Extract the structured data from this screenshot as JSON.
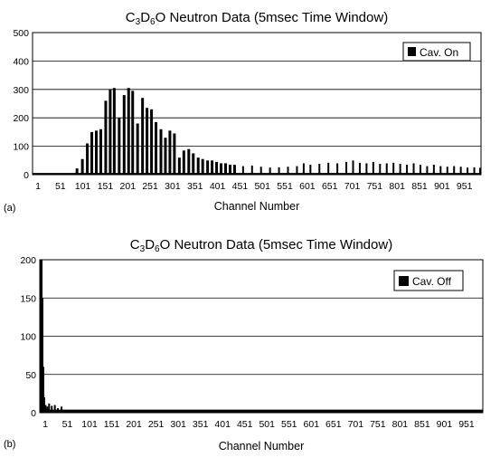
{
  "chart_data": [
    {
      "type": "bar",
      "panel_label": "(a)",
      "title": {
        "before": "C",
        "sub1": "3",
        "mid1": "D",
        "sub2": "6",
        "mid2": "O",
        "after": " Neutron Data (5msec Time Window)"
      },
      "xlabel": "Channel Number",
      "ylabel": "",
      "xlim": [
        1,
        1000
      ],
      "ylim": [
        0,
        500
      ],
      "y_ticks": [
        0,
        100,
        200,
        300,
        400,
        500
      ],
      "x_tick_labels": [
        "1",
        "51",
        "101",
        "151",
        "201",
        "251",
        "301",
        "351",
        "401",
        "451",
        "501",
        "551",
        "601",
        "651",
        "701",
        "751",
        "801",
        "851",
        "901",
        "951"
      ],
      "grid": true,
      "legend_position": "top-right",
      "series": [
        {
          "name": "Cav. On",
          "color": "#000000",
          "peaks": [
            [
              100,
              22
            ],
            [
              112,
              55
            ],
            [
              123,
              110
            ],
            [
              133,
              150
            ],
            [
              143,
              155
            ],
            [
              153,
              160
            ],
            [
              164,
              260
            ],
            [
              174,
              300
            ],
            [
              183,
              305
            ],
            [
              194,
              200
            ],
            [
              205,
              280
            ],
            [
              215,
              305
            ],
            [
              224,
              295
            ],
            [
              235,
              180
            ],
            [
              246,
              270
            ],
            [
              256,
              235
            ],
            [
              266,
              230
            ],
            [
              276,
              185
            ],
            [
              287,
              160
            ],
            [
              297,
              130
            ],
            [
              307,
              155
            ],
            [
              317,
              145
            ],
            [
              328,
              60
            ],
            [
              338,
              85
            ],
            [
              349,
              90
            ],
            [
              359,
              75
            ],
            [
              370,
              60
            ],
            [
              380,
              55
            ],
            [
              391,
              50
            ],
            [
              401,
              50
            ],
            [
              411,
              45
            ],
            [
              421,
              40
            ],
            [
              431,
              40
            ],
            [
              441,
              35
            ],
            [
              451,
              35
            ]
          ],
          "tail": [
            [
              470,
              30
            ],
            [
              490,
              32
            ],
            [
              510,
              28
            ],
            [
              530,
              25
            ],
            [
              550,
              26
            ],
            [
              570,
              28
            ],
            [
              590,
              30
            ],
            [
              605,
              40
            ],
            [
              620,
              35
            ],
            [
              640,
              38
            ],
            [
              660,
              42
            ],
            [
              680,
              40
            ],
            [
              700,
              45
            ],
            [
              715,
              50
            ],
            [
              730,
              42
            ],
            [
              745,
              40
            ],
            [
              760,
              45
            ],
            [
              775,
              38
            ],
            [
              790,
              40
            ],
            [
              805,
              42
            ],
            [
              820,
              38
            ],
            [
              835,
              35
            ],
            [
              850,
              40
            ],
            [
              865,
              35
            ],
            [
              880,
              30
            ],
            [
              895,
              35
            ],
            [
              910,
              30
            ],
            [
              925,
              28
            ],
            [
              940,
              30
            ],
            [
              955,
              28
            ],
            [
              970,
              25
            ],
            [
              985,
              26
            ],
            [
              998,
              24
            ]
          ],
          "baseline": 6
        }
      ]
    },
    {
      "type": "bar",
      "panel_label": "(b)",
      "title": {
        "before": "C",
        "sub1": "3",
        "mid1": "D",
        "sub2": "6",
        "mid2": "O",
        "after": " Neutron Data (5msec Time Window)"
      },
      "xlabel": "Channel Number",
      "ylabel": "",
      "xlim": [
        1,
        1000
      ],
      "ylim": [
        0,
        200
      ],
      "y_ticks": [
        0,
        50,
        100,
        150,
        200
      ],
      "x_tick_labels": [
        "1",
        "51",
        "101",
        "151",
        "201",
        "251",
        "301",
        "351",
        "401",
        "451",
        "501",
        "551",
        "601",
        "651",
        "701",
        "751",
        "801",
        "851",
        "901",
        "951"
      ],
      "grid": true,
      "legend_position": "top-right",
      "series": [
        {
          "name": "Cav. Off",
          "color": "#000000",
          "peaks": [
            [
              3,
              200
            ],
            [
              5,
              200
            ],
            [
              7,
              150
            ],
            [
              9,
              60
            ],
            [
              11,
              20
            ],
            [
              14,
              10
            ],
            [
              18,
              8
            ],
            [
              22,
              12
            ],
            [
              28,
              9
            ],
            [
              35,
              10
            ],
            [
              42,
              6
            ],
            [
              50,
              8
            ]
          ],
          "tail": [],
          "baseline": 4
        }
      ]
    }
  ]
}
